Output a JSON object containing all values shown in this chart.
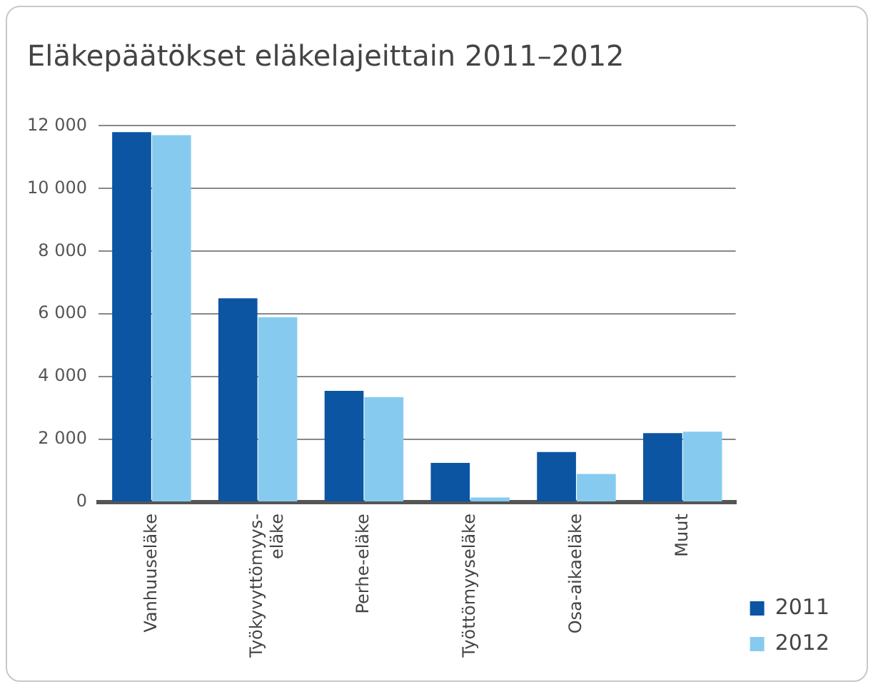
{
  "chart_data": {
    "type": "bar",
    "title": "Eläkepäätökset eläkelajeittain 2011–2012",
    "categories": [
      "Vanhuuseläke",
      "Työkyvyttömyys-\neläke",
      "Perhe-eläke",
      "Työttömyyseläke",
      "Osa-aikaeläke",
      "Muut"
    ],
    "series": [
      {
        "name": "2011",
        "color": "#0b55a3",
        "values": [
          11800,
          6500,
          3550,
          1250,
          1600,
          2200
        ]
      },
      {
        "name": "2012",
        "color": "#86cbef",
        "values": [
          11700,
          5900,
          3350,
          150,
          900,
          2250
        ]
      }
    ],
    "ylim": [
      0,
      12000
    ],
    "yticks": [
      {
        "value": 0,
        "label": "0"
      },
      {
        "value": 2000,
        "label": "2 000"
      },
      {
        "value": 4000,
        "label": "4 000"
      },
      {
        "value": 6000,
        "label": "6 000"
      },
      {
        "value": 8000,
        "label": "8 000"
      },
      {
        "value": 10000,
        "label": "10 000"
      },
      {
        "value": 12000,
        "label": "12 000"
      }
    ],
    "grid": "y",
    "legend": "right"
  }
}
